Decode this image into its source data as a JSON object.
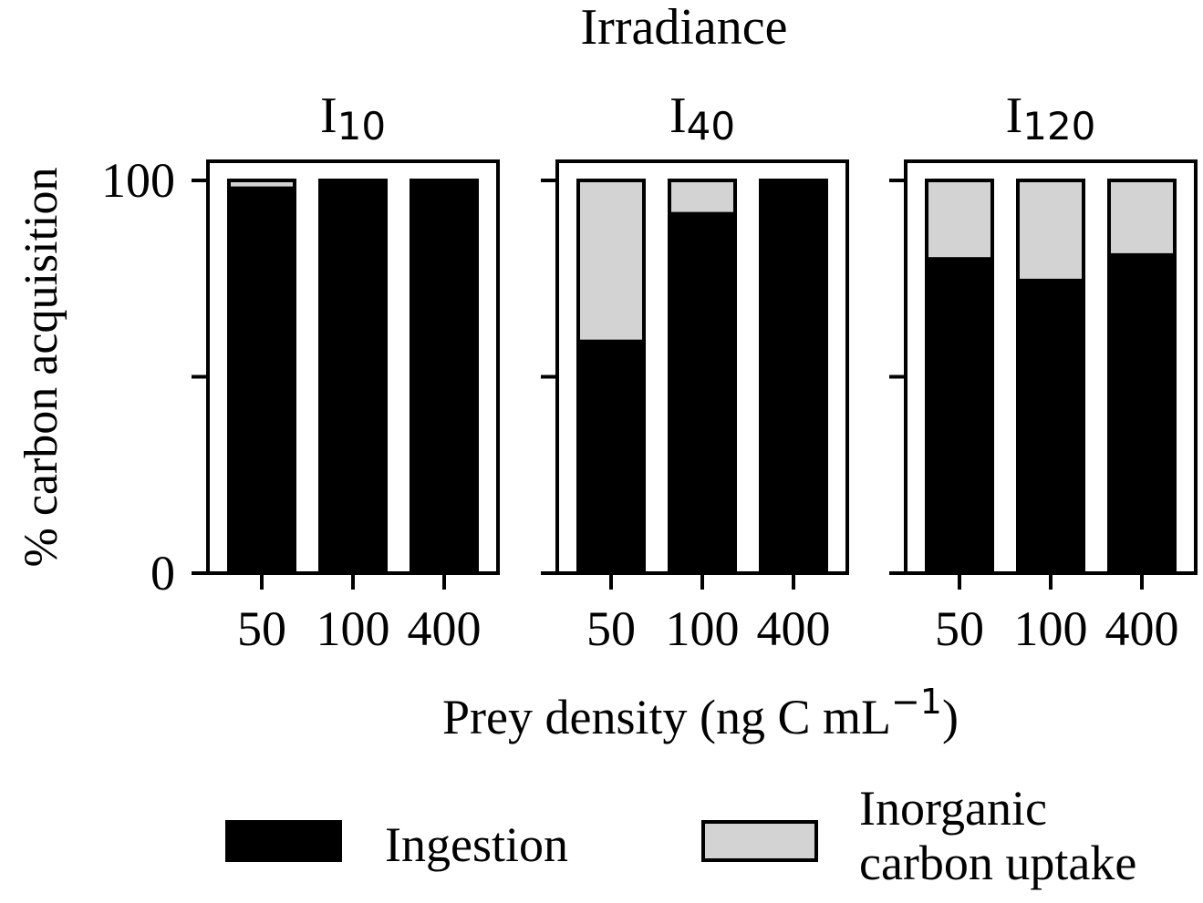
{
  "chart_data": {
    "type": "bar",
    "stacked": true,
    "suptitle": "Irradiance",
    "ylabel": "% carbon acquisition",
    "xlabel": {
      "main": "Prey density (ng C mL",
      "sup": "−1",
      "close": ")"
    },
    "ylim": [
      0,
      100
    ],
    "yticks": [
      0,
      50,
      100
    ],
    "ytick_labels": [
      "0",
      "",
      "100"
    ],
    "categories": [
      "50",
      "100",
      "400"
    ],
    "panels": [
      {
        "title_main": "I",
        "title_sub": "10",
        "series": [
          {
            "name": "Ingestion",
            "values": [
              98,
              100,
              100
            ]
          },
          {
            "name": "Inorganic carbon uptake",
            "values": [
              2,
              0,
              0
            ]
          }
        ]
      },
      {
        "title_main": "I",
        "title_sub": "40",
        "series": [
          {
            "name": "Ingestion",
            "values": [
              59,
              91.5,
              99.3
            ]
          },
          {
            "name": "Inorganic carbon uptake",
            "values": [
              41,
              8.5,
              0.7
            ]
          }
        ]
      },
      {
        "title_main": "I",
        "title_sub": "120",
        "series": [
          {
            "name": "Ingestion",
            "values": [
              80,
              74.5,
              81
            ]
          },
          {
            "name": "Inorganic carbon uptake",
            "values": [
              20,
              25.5,
              19
            ]
          }
        ]
      }
    ],
    "legend": {
      "placement": "bottom",
      "entries": [
        {
          "label_lines": [
            "Ingestion"
          ],
          "color": "#000000"
        },
        {
          "label_lines": [
            "Inorganic",
            "carbon uptake"
          ],
          "color": "#d3d3d3"
        }
      ]
    },
    "colors": {
      "ingestion": "#000000",
      "inorganic": "#d3d3d3",
      "edge": "#000000"
    }
  }
}
